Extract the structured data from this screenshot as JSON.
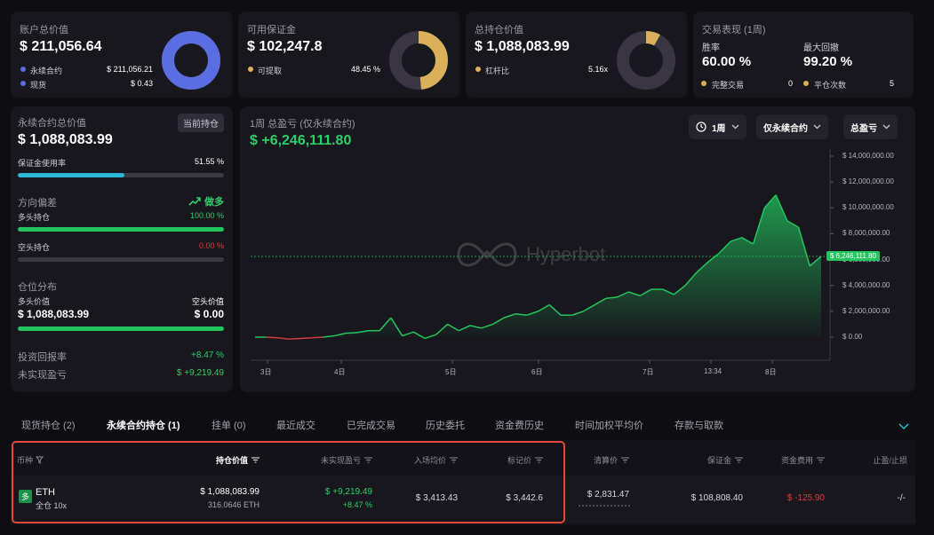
{
  "colors": {
    "accent_green": "#2ecf6a",
    "red": "#e23b3b",
    "blue": "#5b6ee1",
    "gold": "#d9b15a",
    "highlight": "#e04a3a"
  },
  "summary": {
    "account": {
      "label": "账户总价值",
      "value": "$ 211,056.64",
      "rows": [
        {
          "label": "永续合约",
          "value": "$ 211,056.21"
        },
        {
          "label": "现货",
          "value": "$ 0.43"
        }
      ],
      "perp_share": 1.0
    },
    "margin": {
      "label": "可用保证金",
      "value": "$ 102,247.8",
      "rows": [
        {
          "label": "可提取",
          "value": "48.45 %"
        }
      ],
      "ratio": 0.4845
    },
    "positions": {
      "label": "总持仓价值",
      "value": "$ 1,088,083.99",
      "rows": [
        {
          "label": "杠杆比",
          "value": "5.16x"
        }
      ],
      "ratio": 0.08
    },
    "performance": {
      "label": "交易表现 (1周)",
      "winrate_label": "胜率",
      "winrate": "60.00 %",
      "drawdown_label": "最大回撤",
      "drawdown": "99.20 %",
      "completed_label": "完整交易",
      "completed": "0",
      "closes_label": "平仓次数",
      "closes": "5"
    }
  },
  "left": {
    "perp_label": "永续合约总价值",
    "perp_value": "$ 1,088,083.99",
    "current_badge": "当前持仓",
    "margin_usage_label": "保证金使用率",
    "margin_usage": "51.55 %",
    "margin_usage_ratio": 0.5155,
    "bias_label": "方向偏差",
    "bias_value": "做多",
    "long_label": "多头持仓",
    "long_pct": "100.00 %",
    "long_ratio": 1.0,
    "short_label": "空头持仓",
    "short_pct": "0.00 %",
    "short_ratio": 0.0,
    "dist_label": "仓位分布",
    "long_val_label": "多头价值",
    "short_val_label": "空头价值",
    "long_val": "$ 1,088,083.99",
    "short_val": "$ 0.00",
    "dist_ratio": 1.0,
    "roi_label": "投资回报率",
    "roi": "+8.47 %",
    "upnl_label": "未实现盈亏",
    "upnl": "$ +9,219.49"
  },
  "chart_header": {
    "title": "1周 总盈亏 (仅永续合约)",
    "value": "$ +6,246,111.80",
    "period": "1周",
    "filter": "仅永续合约",
    "metric": "总盈亏",
    "watermark": "Hyperbot"
  },
  "chart_data": {
    "type": "area",
    "y_ticks": [
      "14,000,000.00",
      "12,000,000.00",
      "10,000,000.00",
      "8,000,000.00",
      "6,000,000.00",
      "4,000,000.00",
      "2,000,000.00",
      "0.00"
    ],
    "ylim": [
      -800000,
      14500000
    ],
    "x_labels": [
      "3日",
      "4日",
      "5日",
      "6日",
      "7日",
      "13:34",
      "8日"
    ],
    "current_label": "6,246,111.80",
    "current_value": 6246111.8,
    "y": [
      0,
      0,
      -50000,
      -150000,
      -100000,
      -50000,
      0,
      100000,
      300000,
      350000,
      500000,
      500000,
      1500000,
      100000,
      400000,
      -100000,
      200000,
      1000000,
      500000,
      900000,
      700000,
      1000000,
      1500000,
      1800000,
      1700000,
      2000000,
      2500000,
      1700000,
      1700000,
      2000000,
      2500000,
      3000000,
      3100000,
      3500000,
      3200000,
      3700000,
      3700000,
      3300000,
      4000000,
      5000000,
      5800000,
      6500000,
      7400000,
      7700000,
      7200000,
      10000000,
      11000000,
      9000000,
      8500000,
      5500000,
      6246111.8
    ]
  },
  "tabs": [
    "现货持仓 (2)",
    "永续合约持仓 (1)",
    "挂单 (0)",
    "最近成交",
    "已完成交易",
    "历史委托",
    "资金费历史",
    "时间加权平均价",
    "存款与取款"
  ],
  "table": {
    "headers": {
      "coin": "币种",
      "value": "持仓价值",
      "upnl": "未实现盈亏",
      "entry": "入场均价",
      "mark": "标记价",
      "liq": "清算价",
      "margin": "保证金",
      "funding": "资金费用",
      "tpsl": "止盈/止损"
    },
    "rows": [
      {
        "side": "多",
        "coin": "ETH",
        "mode": "全仓 10x",
        "value": "$ 1,088,083.99",
        "size": "316.0646 ETH",
        "upnl": "$ +9,219.49",
        "upnl_pct": "+8.47 %",
        "entry": "$ 3,413.43",
        "mark": "$ 3,442.6",
        "liq": "$ 2,831.47",
        "margin": "$ 108,808.40",
        "funding": "$ -125.90",
        "tpsl": "-/-"
      }
    ]
  }
}
